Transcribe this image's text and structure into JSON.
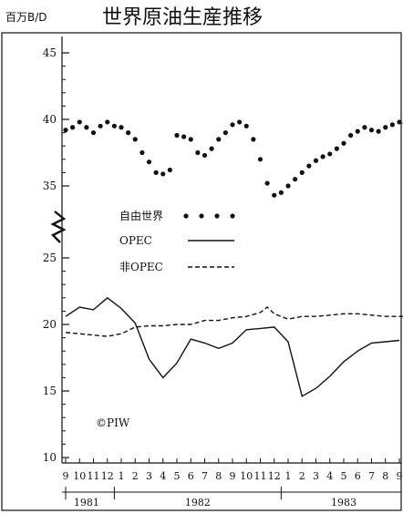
{
  "chart_data": {
    "type": "line",
    "title": "世界原油生産推移",
    "ylabel": "百万B/D",
    "xlabel": "",
    "ylim": [
      10,
      45
    ],
    "y_ticks": [
      45,
      40,
      35,
      25,
      20,
      15,
      10
    ],
    "y_break": [
      26,
      34
    ],
    "grid": false,
    "legend_placement": "center-left",
    "months": [
      9,
      10,
      11,
      12,
      1,
      2,
      3,
      4,
      5,
      6,
      7,
      8,
      9,
      10,
      11,
      12,
      1,
      2,
      3,
      4,
      5,
      6,
      7,
      8,
      9
    ],
    "years": [
      {
        "label": "1981",
        "start": 0,
        "end": 3
      },
      {
        "label": "1982",
        "start": 4,
        "end": 15
      },
      {
        "label": "1983",
        "start": 16,
        "end": 24
      }
    ],
    "series": [
      {
        "name": "自由世界",
        "style": "dotted",
        "color": "#111111",
        "x": [
          0,
          0.5,
          1,
          1.5,
          2,
          2.5,
          3,
          3.5,
          4,
          4.5,
          5,
          5.5,
          6,
          6.5,
          7,
          7.5,
          8,
          8.5,
          9,
          9.5,
          10,
          10.5,
          11,
          11.5,
          12,
          12.5,
          13,
          13.5,
          14,
          14.5,
          15,
          15.5,
          16,
          16.5,
          17,
          17.5,
          18,
          18.5,
          19,
          19.5,
          20,
          20.5,
          21,
          21.5,
          22,
          22.5,
          23,
          23.5,
          24,
          24.4
        ],
        "values": [
          39.2,
          39.4,
          39.8,
          39.4,
          39.0,
          39.5,
          39.8,
          39.5,
          39.4,
          39.0,
          38.5,
          37.5,
          36.8,
          36.0,
          35.9,
          36.2,
          38.8,
          38.7,
          38.5,
          37.5,
          37.3,
          37.8,
          38.5,
          39.0,
          39.6,
          39.8,
          39.5,
          38.5,
          37.0,
          35.2,
          34.3,
          34.5,
          35.0,
          35.5,
          36.0,
          36.5,
          36.9,
          37.2,
          37.4,
          37.8,
          38.2,
          38.8,
          39.1,
          39.4,
          39.2,
          39.1,
          39.4,
          39.6,
          39.8,
          39.7
        ]
      },
      {
        "name": "OPEC",
        "style": "solid",
        "color": "#111111",
        "x": [
          0,
          1,
          2,
          3,
          4,
          5,
          6,
          7,
          8,
          9,
          10,
          11,
          12,
          13,
          14,
          15,
          16,
          17,
          18,
          19,
          20,
          21,
          22,
          23,
          24
        ],
        "values": [
          20.6,
          21.3,
          21.1,
          22.0,
          21.2,
          20.1,
          17.4,
          16.0,
          17.1,
          18.9,
          18.6,
          18.2,
          18.6,
          19.6,
          19.7,
          19.8,
          18.7,
          14.6,
          15.2,
          16.1,
          17.2,
          18.0,
          18.6,
          18.7,
          18.8
        ]
      },
      {
        "name": "非OPEC",
        "style": "dashed",
        "color": "#111111",
        "x": [
          0,
          1,
          2,
          3,
          4,
          5,
          6,
          7,
          8,
          9,
          10,
          11,
          12,
          13,
          14,
          14.5,
          15,
          16,
          17,
          18,
          19,
          20,
          21,
          22,
          23,
          24.5
        ],
        "values": [
          19.4,
          19.3,
          19.2,
          19.1,
          19.3,
          19.8,
          19.9,
          19.9,
          20.0,
          20.0,
          20.3,
          20.3,
          20.5,
          20.6,
          20.9,
          21.3,
          20.8,
          20.4,
          20.6,
          20.6,
          20.7,
          20.8,
          20.8,
          20.7,
          20.6,
          20.6
        ]
      }
    ]
  },
  "annotations": {
    "copyright": "©PIW"
  }
}
